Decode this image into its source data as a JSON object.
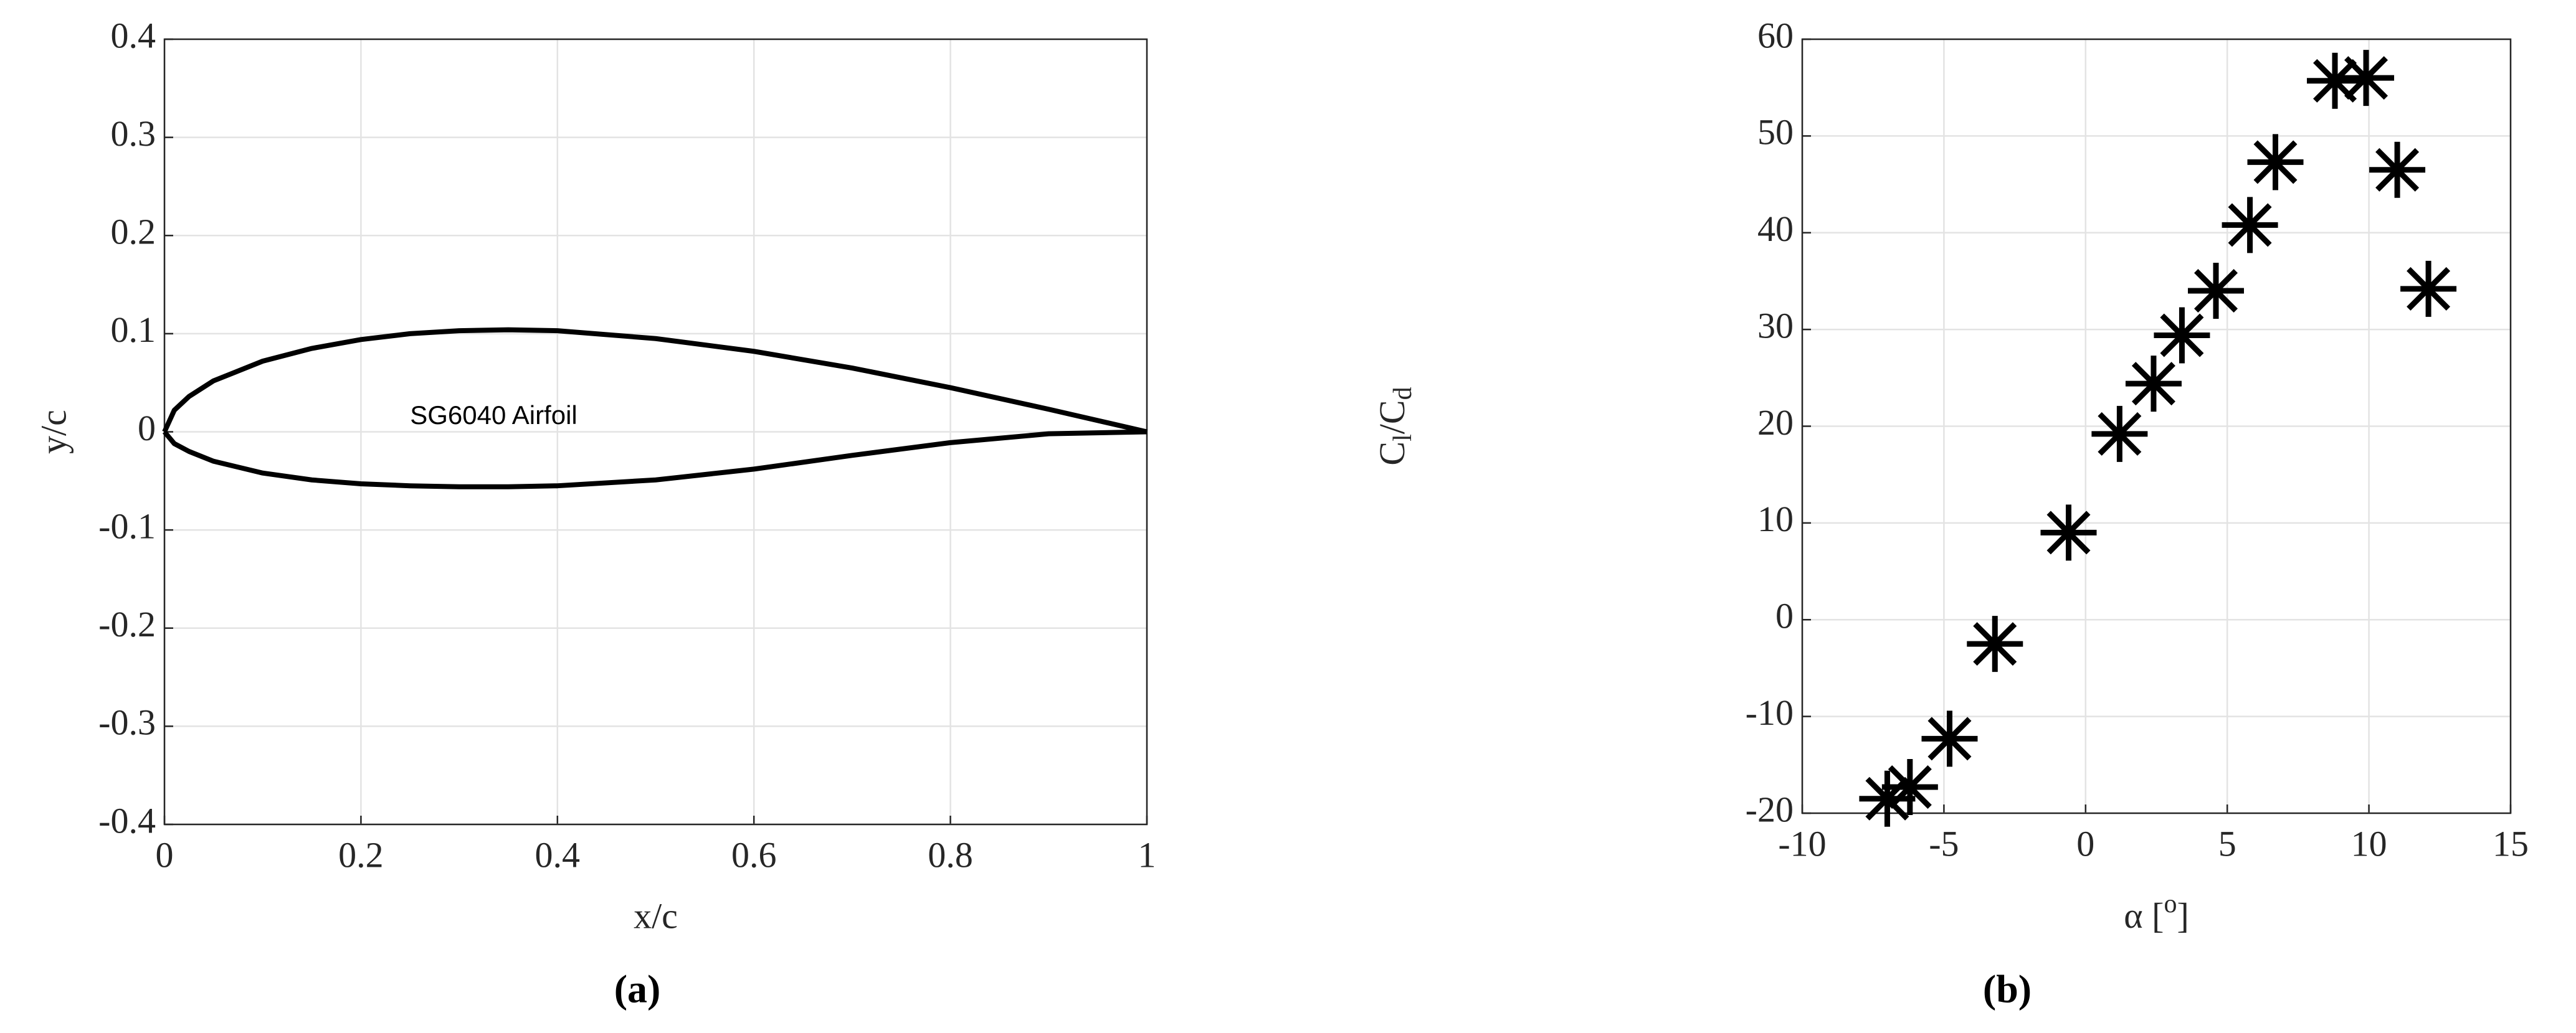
{
  "chart_data": [
    {
      "type": "line",
      "caption": "(a)",
      "xlabel": "x/c",
      "ylabel": "y/c",
      "annotation": "SG6040 Airfoil",
      "annotation_x": 0.25,
      "annotation_y": 0.015,
      "x": [
        0,
        0.01,
        0.025,
        0.05,
        0.1,
        0.15,
        0.2,
        0.25,
        0.3,
        0.35,
        0.4,
        0.5,
        0.6,
        0.7,
        0.8,
        0.9,
        1
      ],
      "series": [
        {
          "color": "#000000",
          "values": [
            0,
            0.022,
            0.036,
            0.052,
            0.072,
            0.085,
            0.094,
            0.1,
            0.103,
            0.104,
            0.103,
            0.095,
            0.082,
            0.065,
            0.045,
            0.023,
            0
          ]
        },
        {
          "color": "#000000",
          "values": [
            0,
            -0.012,
            -0.02,
            -0.03,
            -0.042,
            -0.049,
            -0.053,
            -0.055,
            -0.056,
            -0.056,
            -0.055,
            -0.049,
            -0.038,
            -0.024,
            -0.011,
            -0.002,
            0
          ]
        }
      ],
      "xlim": [
        0,
        1
      ],
      "xticks": [
        0,
        0.2,
        0.4,
        0.6,
        0.8,
        1
      ],
      "ylim": [
        -0.4,
        0.4
      ],
      "yticks": [
        -0.4,
        -0.3,
        -0.2,
        -0.1,
        0,
        0.1,
        0.2,
        0.3,
        0.4
      ],
      "grid": true
    },
    {
      "type": "scatter",
      "caption": "(b)",
      "xlabel": [
        "α [",
        "o",
        "]"
      ],
      "ylabel": [
        "C",
        "l",
        "/C",
        "d"
      ],
      "x": [
        -7,
        -6.2,
        -4.8,
        -3.2,
        -0.6,
        1.2,
        2.4,
        3.4,
        4.6,
        5.8,
        6.7,
        8.8,
        9.9,
        11,
        12.1
      ],
      "series": [
        {
          "color": "#000000",
          "values": [
            -18.5,
            -17.3,
            -12.3,
            -2.5,
            9,
            19.2,
            24.4,
            29.4,
            34,
            40.8,
            47.3,
            55.7,
            56,
            46.5,
            34.2
          ]
        }
      ],
      "xlim": [
        -10,
        15
      ],
      "xticks": [
        -10,
        -5,
        0,
        5,
        10,
        15
      ],
      "ylim": [
        -20,
        60
      ],
      "yticks": [
        -20,
        -10,
        0,
        10,
        20,
        30,
        40,
        50,
        60
      ],
      "grid": true
    }
  ]
}
